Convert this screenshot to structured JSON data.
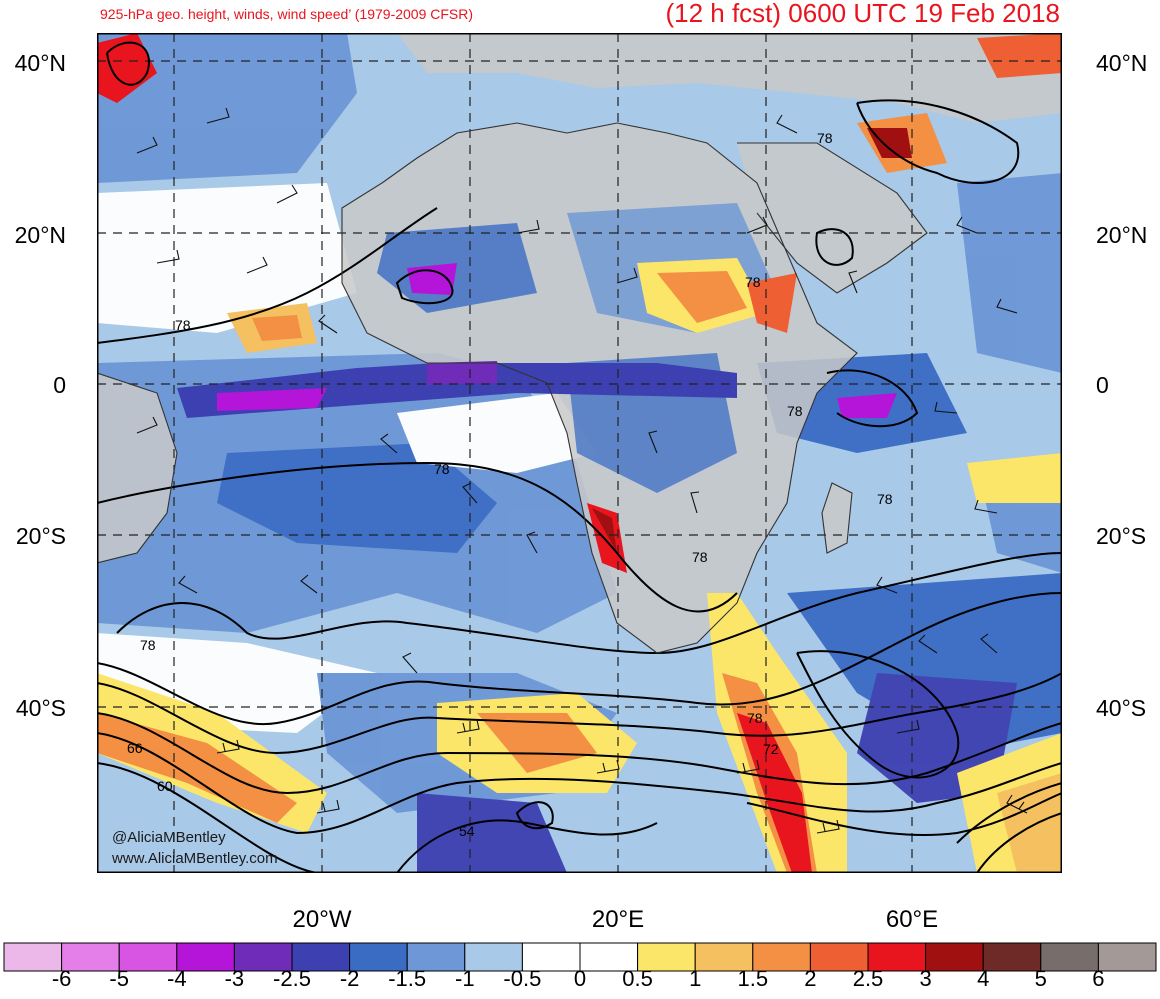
{
  "titles": {
    "left": "925-hPa geo. height, winds, wind speed’ (1979-2009 CFSR)",
    "right": "(12 h fcst) 0600 UTC 19 Feb 2018"
  },
  "axes": {
    "lat_labels": [
      "40°N",
      "20°N",
      "0",
      "20°S",
      "40°S"
    ],
    "lon_labels": [
      "20°W",
      "20°E",
      "60°E"
    ]
  },
  "contour_labels": [
    "78",
    "78",
    "78",
    "78",
    "78",
    "78",
    "78",
    "78",
    "78",
    "72",
    "66",
    "60",
    "54"
  ],
  "credits": {
    "handle": "@AliciaMBentley",
    "site": "www.AliciaMBentley.com"
  },
  "colorbar": {
    "ticks": [
      "-6",
      "-5",
      "-4",
      "-3",
      "-2.5",
      "-2",
      "-1.5",
      "-1",
      "-0.5",
      "0",
      "0.5",
      "1",
      "1.5",
      "2",
      "2.5",
      "3",
      "4",
      "5",
      "6"
    ],
    "colors": [
      "#ecb8ea",
      "#e47ee8",
      "#d855e4",
      "#b415d8",
      "#6e2cb8",
      "#3c40b0",
      "#3a6cc4",
      "#6d97d6",
      "#a8c9e8",
      "#ffffff",
      "#ffffff",
      "#fce66a",
      "#f5c060",
      "#f39044",
      "#ee5f34",
      "#e8141e",
      "#a01010",
      "#6e2a26",
      "#776d6b",
      "#a39a98"
    ]
  },
  "colors": {
    "title": "#e8141e",
    "land": "#c9c9c9"
  }
}
